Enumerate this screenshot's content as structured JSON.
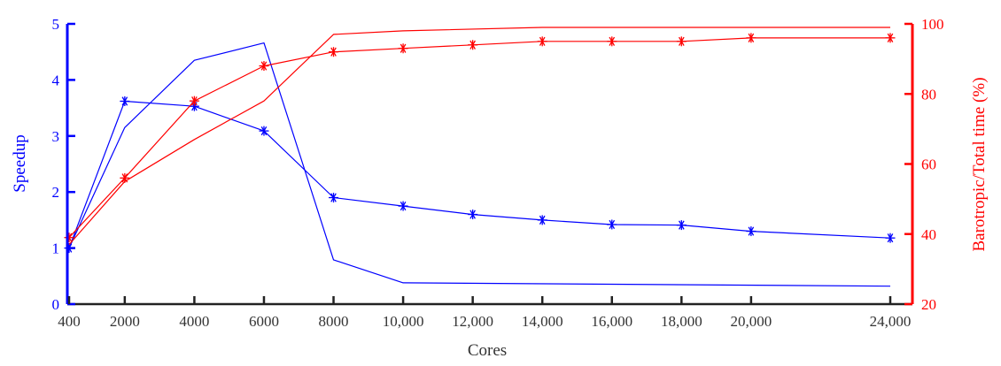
{
  "chart_data": {
    "type": "line",
    "xlabel": "Cores",
    "ylabel_left": "Speedup",
    "ylabel_right": "Barotropic/Total time (%)",
    "x_ticks": [
      400,
      2000,
      4000,
      6000,
      8000,
      10000,
      12000,
      14000,
      16000,
      18000,
      20000,
      24000
    ],
    "x_tick_labels": [
      "400",
      "2000",
      "4000",
      "6000",
      "8000",
      "10,000",
      "12,000",
      "14,000",
      "16,000",
      "18,000",
      "20,000",
      "24,000"
    ],
    "y_left_ticks": [
      0,
      1,
      2,
      3,
      4,
      5
    ],
    "y_left_range": [
      0,
      5
    ],
    "y_right_ticks": [
      20,
      40,
      60,
      80,
      100
    ],
    "y_right_range": [
      20,
      100
    ],
    "colors": {
      "left_axis": "#0000ff",
      "right_axis": "#ff0000"
    },
    "series": [
      {
        "axis": "left",
        "marker": "star",
        "color": "#0000ff",
        "x": [
          400,
          2000,
          4000,
          6000,
          8000,
          10000,
          12000,
          14000,
          16000,
          18000,
          20000,
          24000
        ],
        "values": [
          1.0,
          3.62,
          3.53,
          3.09,
          1.9,
          1.75,
          1.6,
          1.5,
          1.42,
          1.41,
          1.3,
          1.18
        ]
      },
      {
        "axis": "left",
        "marker": "none",
        "color": "#0000ff",
        "x": [
          400,
          2000,
          4000,
          6000,
          8000,
          10000,
          24000
        ],
        "values": [
          1.0,
          3.15,
          4.35,
          4.66,
          0.79,
          0.38,
          0.32
        ]
      },
      {
        "axis": "right",
        "marker": "star",
        "color": "#ff0000",
        "x": [
          400,
          2000,
          4000,
          6000,
          8000,
          10000,
          12000,
          14000,
          16000,
          18000,
          20000,
          24000
        ],
        "values": [
          39,
          56,
          78,
          88,
          92,
          93,
          94,
          95,
          95,
          95,
          96,
          96
        ]
      },
      {
        "axis": "right",
        "marker": "none",
        "color": "#ff0000",
        "x": [
          400,
          2000,
          4000,
          6000,
          8000,
          10000,
          14000,
          24000
        ],
        "values": [
          37,
          55,
          67,
          78,
          97,
          98,
          99,
          99
        ]
      }
    ]
  }
}
